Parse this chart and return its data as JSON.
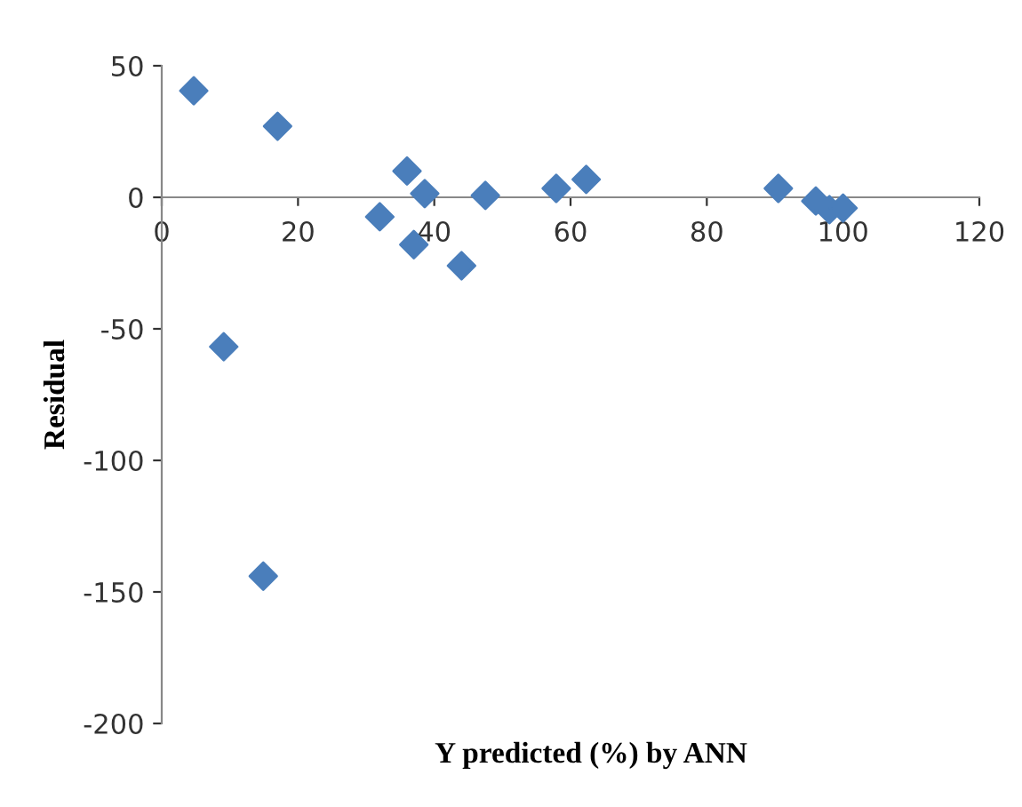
{
  "chart_data": {
    "type": "scatter",
    "xlabel": "Y predicted (%) by ANN",
    "ylabel": "Residual",
    "x": [
      4.7,
      9.1,
      14.9,
      17,
      32,
      36,
      37,
      38.6,
      44,
      47.5,
      57.9,
      62.3,
      90.5,
      96,
      98,
      100
    ],
    "values": [
      40.5,
      -56.8,
      -144,
      27,
      -7.4,
      10,
      -18,
      1.4,
      -26,
      0.7,
      3.4,
      6.8,
      3.4,
      -1.4,
      -4.7,
      -4.1
    ],
    "color": "#4a7ebb",
    "marker": "diamond",
    "xlim": [
      0,
      120
    ],
    "xticks": [
      0,
      20,
      40,
      60,
      80,
      100,
      120
    ],
    "ylim": [
      -200,
      50
    ],
    "yticks": [
      -200,
      -150,
      -100,
      -50,
      0,
      50
    ],
    "grid": false,
    "legend": false
  }
}
